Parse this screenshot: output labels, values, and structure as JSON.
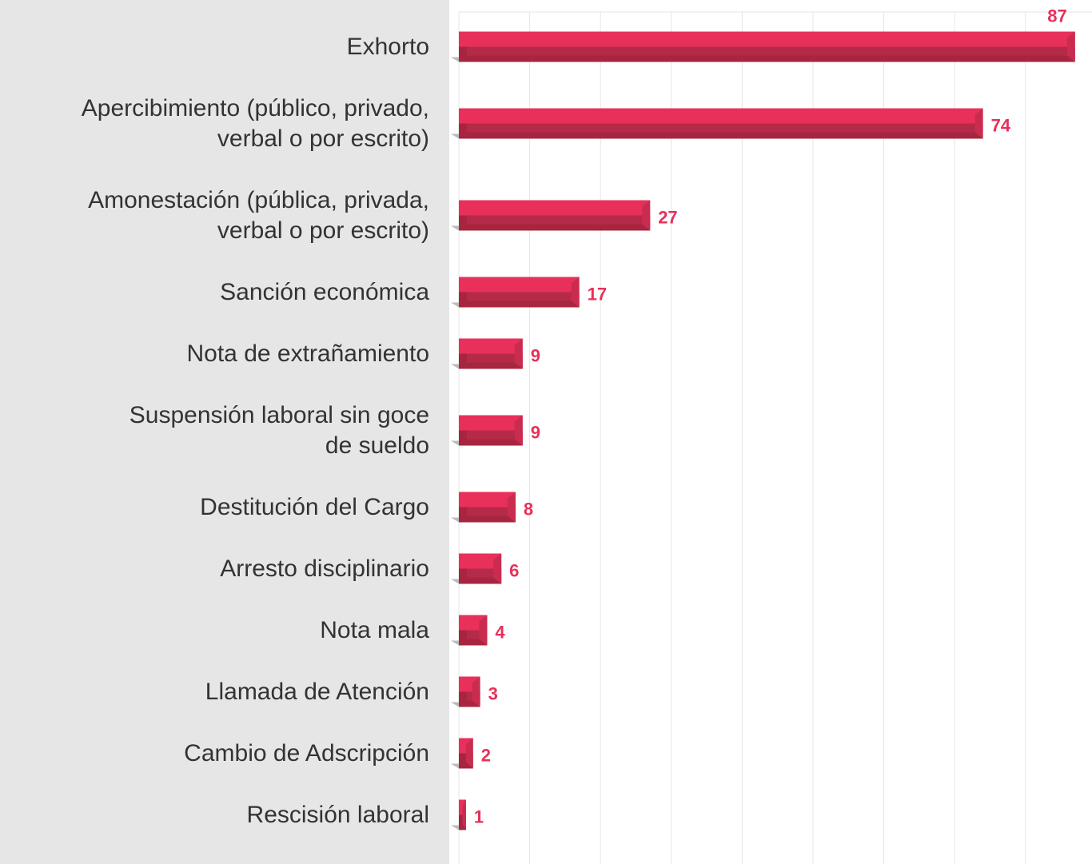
{
  "chart_data": {
    "type": "bar",
    "orientation": "horizontal",
    "categories": [
      "Exhorto",
      "Apercibimiento (público, privado,\nverbal o por escrito)",
      "Amonestación (pública, privada,\nverbal o por escrito)",
      "Sanción económica",
      "Nota de extrañamiento",
      "Suspensión laboral sin goce\nde sueldo",
      "Destitución del Cargo",
      "Arresto disciplinario",
      "Nota mala",
      "Llamada de Atención",
      "Cambio de Adscripción",
      "Rescisión laboral"
    ],
    "values": [
      87,
      74,
      27,
      17,
      9,
      9,
      8,
      6,
      4,
      3,
      2,
      1
    ],
    "color": "#e8305a",
    "xlim": [
      0,
      89.4
    ],
    "xticks": [
      0,
      10,
      20,
      30,
      40,
      50,
      60,
      70,
      80
    ],
    "grid": true
  }
}
